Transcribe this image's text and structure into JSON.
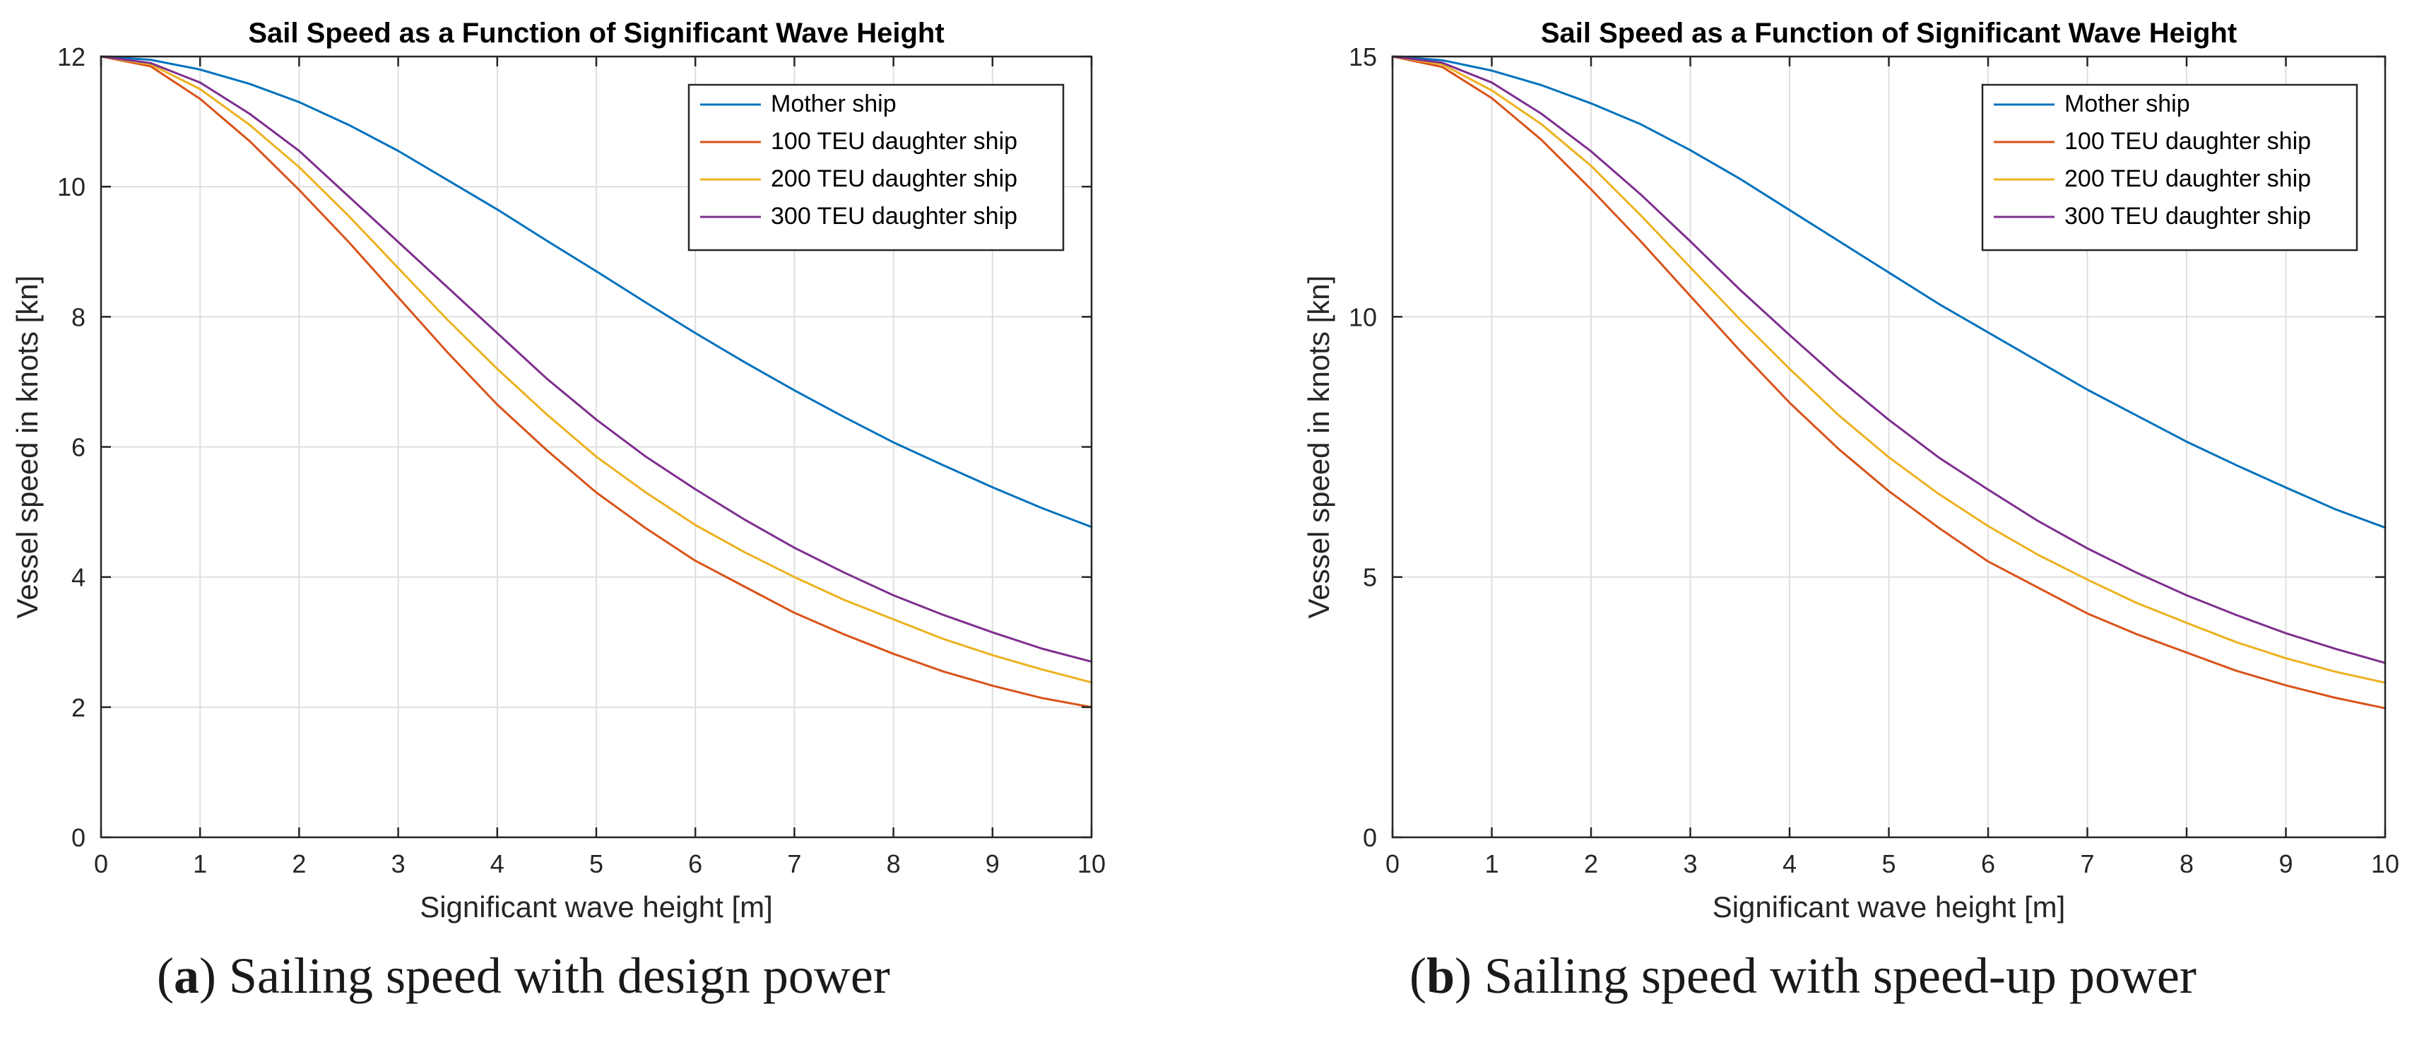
{
  "colors": {
    "mother": "#0072BD",
    "teu100": "#D95319",
    "teu200": "#EDB120",
    "teu300": "#7E2F8E",
    "grid": "#DFDFDF",
    "axis": "#262626"
  },
  "captions": [
    {
      "letter": "a",
      "open": "(",
      "close": ")",
      "text": " Sailing speed with design power"
    },
    {
      "letter": "b",
      "open": "(",
      "close": ")",
      "text": " Sailing speed with speed-up power"
    }
  ],
  "chart_data": [
    {
      "type": "line",
      "title": "Sail Speed as a Function of Significant Wave Height",
      "xlabel": "Significant wave height [m]",
      "ylabel": "Vessel speed in knots [kn]",
      "xlim": [
        0,
        10
      ],
      "ylim": [
        0,
        12
      ],
      "xticks": [
        0,
        1,
        2,
        3,
        4,
        5,
        6,
        7,
        8,
        9,
        10
      ],
      "yticks": [
        0,
        2,
        4,
        6,
        8,
        10,
        12
      ],
      "grid": true,
      "legend_position": "top-right",
      "x": [
        0,
        0.5,
        1,
        1.5,
        2,
        2.5,
        3,
        3.5,
        4,
        4.5,
        5,
        5.5,
        6,
        6.5,
        7,
        7.5,
        8,
        8.5,
        9,
        9.5,
        10
      ],
      "series": [
        {
          "name": "Mother ship",
          "color_key": "mother",
          "values": [
            12.0,
            11.95,
            11.8,
            11.58,
            11.3,
            10.95,
            10.55,
            10.1,
            9.65,
            9.17,
            8.7,
            8.22,
            7.75,
            7.3,
            6.87,
            6.46,
            6.07,
            5.72,
            5.38,
            5.06,
            4.77
          ]
        },
        {
          "name": "100 TEU daughter ship",
          "color_key": "teu100",
          "values": [
            12.0,
            11.85,
            11.35,
            10.7,
            9.95,
            9.15,
            8.3,
            7.45,
            6.65,
            5.95,
            5.3,
            4.75,
            4.25,
            3.85,
            3.45,
            3.12,
            2.82,
            2.55,
            2.33,
            2.14,
            2.0
          ]
        },
        {
          "name": "200 TEU daughter ship",
          "color_key": "teu200",
          "values": [
            12.0,
            11.88,
            11.5,
            10.95,
            10.3,
            9.55,
            8.75,
            7.95,
            7.2,
            6.5,
            5.85,
            5.3,
            4.8,
            4.38,
            4.0,
            3.65,
            3.35,
            3.05,
            2.8,
            2.58,
            2.38
          ]
        },
        {
          "name": "300 TEU daughter ship",
          "color_key": "teu300",
          "values": [
            12.0,
            11.9,
            11.6,
            11.12,
            10.55,
            9.85,
            9.15,
            8.45,
            7.75,
            7.05,
            6.42,
            5.85,
            5.35,
            4.88,
            4.45,
            4.07,
            3.72,
            3.42,
            3.15,
            2.9,
            2.7
          ]
        }
      ]
    },
    {
      "type": "line",
      "title": "Sail Speed as a Function of Significant Wave Height",
      "xlabel": "Significant wave height [m]",
      "ylabel": "Vessel speed in knots [kn]",
      "xlim": [
        0,
        10
      ],
      "ylim": [
        0,
        15
      ],
      "xticks": [
        0,
        1,
        2,
        3,
        4,
        5,
        6,
        7,
        8,
        9,
        10
      ],
      "yticks": [
        0,
        5,
        10,
        15
      ],
      "grid": true,
      "legend_position": "top-right",
      "x": [
        0,
        0.5,
        1,
        1.5,
        2,
        2.5,
        3,
        3.5,
        4,
        4.5,
        5,
        5.5,
        6,
        6.5,
        7,
        7.5,
        8,
        8.5,
        9,
        9.5,
        10
      ],
      "series": [
        {
          "name": "Mother ship",
          "color_key": "mother",
          "values": [
            15.0,
            14.93,
            14.73,
            14.45,
            14.1,
            13.7,
            13.2,
            12.65,
            12.05,
            11.45,
            10.85,
            10.25,
            9.7,
            9.15,
            8.6,
            8.1,
            7.6,
            7.15,
            6.72,
            6.3,
            5.95
          ]
        },
        {
          "name": "100 TEU daughter ship",
          "color_key": "teu100",
          "values": [
            15.0,
            14.8,
            14.2,
            13.4,
            12.45,
            11.45,
            10.4,
            9.35,
            8.35,
            7.45,
            6.65,
            5.95,
            5.3,
            4.8,
            4.3,
            3.9,
            3.55,
            3.2,
            2.92,
            2.68,
            2.48
          ]
        },
        {
          "name": "200 TEU daughter ship",
          "color_key": "teu200",
          "values": [
            15.0,
            14.85,
            14.35,
            13.7,
            12.9,
            11.95,
            10.95,
            9.95,
            9.0,
            8.1,
            7.3,
            6.6,
            5.98,
            5.43,
            4.95,
            4.5,
            4.12,
            3.75,
            3.44,
            3.18,
            2.97
          ]
        },
        {
          "name": "300 TEU daughter ship",
          "color_key": "teu300",
          "values": [
            15.0,
            14.88,
            14.5,
            13.9,
            13.18,
            12.35,
            11.45,
            10.52,
            9.65,
            8.8,
            8.02,
            7.3,
            6.68,
            6.08,
            5.55,
            5.08,
            4.65,
            4.27,
            3.92,
            3.62,
            3.35
          ]
        }
      ]
    }
  ]
}
